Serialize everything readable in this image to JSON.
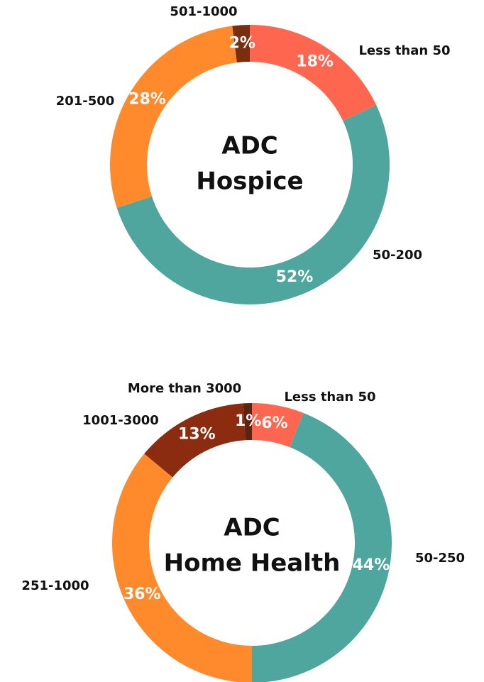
{
  "chart_data": [
    {
      "type": "donut",
      "title": [
        "ADC",
        "Hospice"
      ],
      "categories": [
        "Less than 50",
        "50-200",
        "201-500",
        "501-1000"
      ],
      "values": [
        18,
        52,
        28,
        2
      ],
      "value_labels": [
        "18%",
        "52%",
        "28%",
        "2%"
      ],
      "colors": [
        "#ff6650",
        "#4ea69e",
        "#ff8a2b",
        "#7a2e10"
      ]
    },
    {
      "type": "donut",
      "title": [
        "ADC",
        "Home Health"
      ],
      "categories": [
        "Less than 50",
        "50-250",
        "251-1000",
        "1001-3000",
        "More than 3000"
      ],
      "values": [
        6,
        44,
        36,
        13,
        1
      ],
      "value_labels": [
        "6%",
        "44%",
        "36%",
        "13%",
        "1%"
      ],
      "colors": [
        "#ff6650",
        "#4ea69e",
        "#ff8a2b",
        "#8b2c10",
        "#5a2410"
      ]
    }
  ]
}
